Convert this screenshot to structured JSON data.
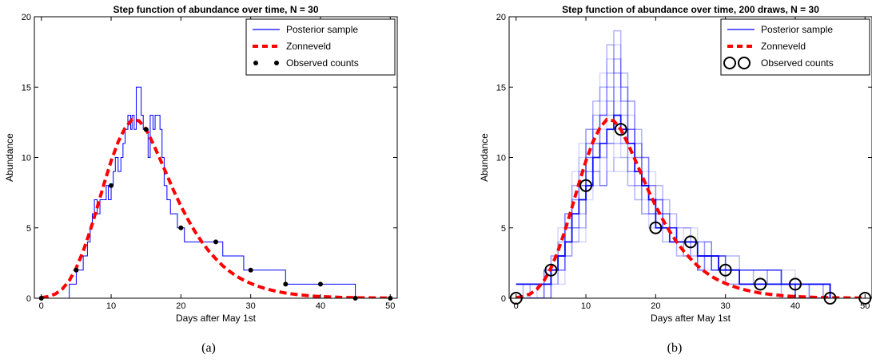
{
  "colors": {
    "posterior": "#0000ff",
    "zonneveld": "#ff0000",
    "observed": "#000000",
    "axes": "#000000"
  },
  "captions": {
    "a": "(a)",
    "b": "(b)"
  },
  "chart_data": [
    {
      "type": "line",
      "title": "Step function of abundance over time, N = 30",
      "xlabel": "Days after May 1st",
      "ylabel": "Abundance",
      "xlim": [
        -1,
        51
      ],
      "ylim": [
        0,
        20
      ],
      "xticks": [
        0,
        10,
        20,
        30,
        40,
        50
      ],
      "yticks": [
        0,
        5,
        10,
        15,
        20
      ],
      "grid": false,
      "legend_position": "top-right",
      "series": [
        {
          "name": "Posterior sample",
          "style": "step",
          "x": [
            0,
            1,
            2,
            3,
            4,
            4.5,
            5,
            5.5,
            6,
            6.3,
            6.6,
            7,
            7.3,
            7.6,
            8,
            8.4,
            8.7,
            9,
            9.3,
            9.6,
            10,
            10.3,
            10.6,
            11,
            11.4,
            11.7,
            12,
            12.4,
            12.8,
            13,
            13.3,
            13.6,
            14,
            14.3,
            14.6,
            15,
            15.3,
            15.6,
            16,
            16.3,
            16.6,
            17,
            17.3,
            17.6,
            18,
            18.5,
            19,
            19.5,
            20,
            20.5,
            21,
            22,
            23,
            24,
            25,
            26,
            27,
            28,
            29,
            30,
            31,
            32,
            33,
            34,
            35,
            36,
            37,
            38,
            39,
            40,
            40.5,
            41,
            42,
            43,
            44,
            45,
            46,
            48,
            50
          ],
          "y": [
            0,
            0,
            0,
            0,
            1,
            1,
            2,
            2,
            3,
            3,
            4,
            5,
            6,
            7,
            6,
            7,
            7,
            7,
            8,
            7,
            8,
            9,
            10,
            9,
            10,
            11,
            12,
            13,
            12,
            13,
            12,
            15,
            15,
            13,
            12,
            12,
            10,
            13,
            12,
            13,
            13,
            12,
            10,
            8,
            7,
            6,
            6,
            5,
            5,
            4,
            4,
            4,
            4,
            4,
            4,
            3,
            3,
            3,
            2,
            2,
            2,
            2,
            2,
            2,
            1,
            1,
            1,
            1,
            1,
            1,
            1,
            1,
            1,
            1,
            1,
            0,
            0,
            0,
            0
          ]
        },
        {
          "name": "Zonneveld",
          "style": "dashed",
          "x": [
            0,
            1,
            2,
            3,
            4,
            5,
            6,
            7,
            8,
            9,
            10,
            11,
            12,
            13,
            14,
            15,
            16,
            17,
            18,
            19,
            20,
            21,
            22,
            23,
            24,
            25,
            26,
            27,
            28,
            29,
            30,
            31,
            32,
            33,
            34,
            35,
            36,
            37,
            38,
            39,
            40,
            41,
            42,
            43,
            44,
            45,
            46,
            47,
            48,
            49,
            50
          ],
          "y": [
            0.04,
            0.12,
            0.3,
            0.65,
            1.25,
            2.15,
            3.35,
            4.8,
            6.45,
            8.15,
            9.75,
            11.1,
            12.1,
            12.7,
            12.6,
            12.0,
            11.0,
            9.9,
            8.75,
            7.6,
            6.55,
            5.6,
            4.75,
            4.0,
            3.35,
            2.8,
            2.3,
            1.9,
            1.55,
            1.28,
            1.05,
            0.86,
            0.7,
            0.57,
            0.46,
            0.37,
            0.3,
            0.24,
            0.19,
            0.15,
            0.12,
            0.1,
            0.08,
            0.06,
            0.05,
            0.04,
            0.03,
            0.025,
            0.02,
            0.016,
            0.012
          ]
        },
        {
          "name": "Observed counts",
          "style": "points",
          "x": [
            0,
            5,
            10,
            15,
            20,
            25,
            30,
            35,
            40,
            45,
            50
          ],
          "y": [
            0,
            2,
            8,
            12,
            5,
            4,
            2,
            1,
            1,
            0,
            0
          ]
        }
      ]
    },
    {
      "type": "line",
      "title": "Step function of abundance over time, 200 draws, N = 30",
      "xlabel": "Days after May 1st",
      "ylabel": "Abundance",
      "xlim": [
        -1,
        51
      ],
      "ylim": [
        0,
        20
      ],
      "xticks": [
        0,
        10,
        20,
        30,
        40,
        50
      ],
      "yticks": [
        0,
        5,
        10,
        15,
        20
      ],
      "grid": false,
      "legend_position": "top-right",
      "draws": 200,
      "series": [
        {
          "name": "Posterior sample",
          "style": "step-band",
          "x": [
            0,
            1,
            2,
            3,
            4,
            5,
            6,
            7,
            8,
            9,
            10,
            11,
            12,
            13,
            14,
            15,
            16,
            17,
            18,
            19,
            20,
            21,
            22,
            23,
            24,
            25,
            26,
            27,
            28,
            29,
            30,
            32,
            34,
            36,
            38,
            40,
            42,
            44,
            45
          ],
          "lower": [
            0,
            0,
            0,
            0,
            0,
            1,
            1,
            2,
            3,
            4,
            6,
            7,
            7,
            8,
            8,
            8,
            7,
            6,
            5,
            5,
            4,
            4,
            4,
            3,
            3,
            3,
            2,
            2,
            2,
            2,
            1,
            1,
            1,
            1,
            0,
            0,
            0,
            0,
            0
          ],
          "median": [
            1,
            1,
            1,
            1,
            1,
            2,
            3,
            4,
            6,
            7,
            8,
            10,
            11,
            12,
            13,
            12,
            11,
            9,
            8,
            7,
            5,
            5,
            4,
            4,
            4,
            4,
            3,
            3,
            3,
            2,
            2,
            1,
            1,
            1,
            1,
            1,
            1,
            1,
            0
          ],
          "upper": [
            1,
            1,
            1,
            1,
            2,
            3,
            5,
            7,
            9,
            11,
            13,
            15,
            17,
            19,
            20,
            18,
            15,
            13,
            11,
            9,
            8,
            7,
            6,
            5,
            5,
            5,
            4,
            4,
            3,
            3,
            3,
            2,
            2,
            2,
            2,
            1,
            1,
            1,
            0
          ]
        },
        {
          "name": "Zonneveld",
          "style": "dashed",
          "x": [
            0,
            1,
            2,
            3,
            4,
            5,
            6,
            7,
            8,
            9,
            10,
            11,
            12,
            13,
            14,
            15,
            16,
            17,
            18,
            19,
            20,
            21,
            22,
            23,
            24,
            25,
            26,
            27,
            28,
            29,
            30,
            31,
            32,
            33,
            34,
            35,
            36,
            37,
            38,
            39,
            40,
            41,
            42,
            43,
            44,
            45,
            46,
            47,
            48,
            49,
            50
          ],
          "y": [
            0.04,
            0.12,
            0.3,
            0.65,
            1.25,
            2.15,
            3.35,
            4.8,
            6.45,
            8.15,
            9.75,
            11.1,
            12.1,
            12.7,
            12.6,
            12.0,
            11.0,
            9.9,
            8.75,
            7.6,
            6.55,
            5.6,
            4.75,
            4.0,
            3.35,
            2.8,
            2.3,
            1.9,
            1.55,
            1.28,
            1.05,
            0.86,
            0.7,
            0.57,
            0.46,
            0.37,
            0.3,
            0.24,
            0.19,
            0.15,
            0.12,
            0.1,
            0.08,
            0.06,
            0.05,
            0.04,
            0.03,
            0.025,
            0.02,
            0.016,
            0.012
          ]
        },
        {
          "name": "Observed counts",
          "style": "circles",
          "x": [
            0,
            5,
            10,
            15,
            20,
            25,
            30,
            35,
            40,
            45,
            50
          ],
          "y": [
            0,
            2,
            8,
            12,
            5,
            4,
            2,
            1,
            1,
            0,
            0
          ]
        }
      ]
    }
  ]
}
